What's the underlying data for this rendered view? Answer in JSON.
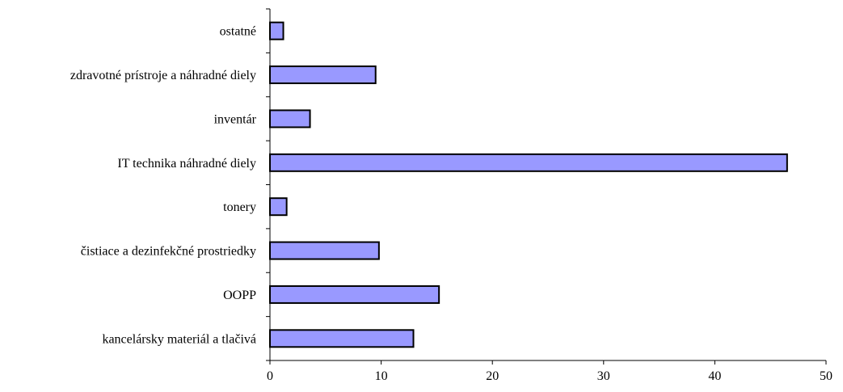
{
  "chart_data": {
    "type": "bar",
    "orientation": "horizontal",
    "title": "",
    "xlabel": "",
    "ylabel": "",
    "categories": [
      "ostatné",
      "zdravotné prístroje a náhradné diely",
      "inventár",
      "IT technika náhradné diely",
      "tonery",
      "čistiace a dezinfekčné prostriedky",
      "OOPP",
      "kancelársky materiál a tlačivá"
    ],
    "values": [
      1.2,
      9.5,
      3.6,
      46.5,
      1.5,
      9.8,
      15.2,
      12.9
    ],
    "xlim": [
      0,
      50
    ],
    "xticks": [
      "0",
      "10",
      "20",
      "30",
      "40",
      "50"
    ],
    "bar_color": "#9999ff",
    "grid": false,
    "legend": "none"
  }
}
